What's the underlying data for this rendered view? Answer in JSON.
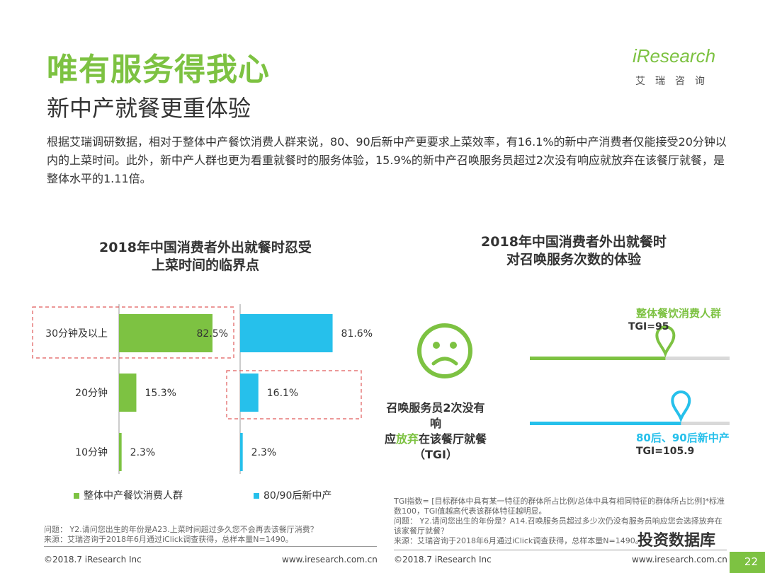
{
  "header": {
    "title": "唯有服务得我心",
    "subtitle": "新中产就餐更重体验",
    "logo_text": "iResearch",
    "logo_cn": "艾瑞咨询",
    "intro": "根据艾瑞调研数据，相对于整体中产餐饮消费人群来说，80、90后新中产更要求上菜效率，有16.1%的新中产消费者仅能接受20分钟以内的上菜时间。此外，新中产人群也更为看重就餐时的服务体验，15.9%的新中产召唤服务员超过2次没有响应就放弃在该餐厅就餐，是整体水平的1.11倍。"
  },
  "chart_data": [
    {
      "type": "bar",
      "orientation": "horizontal",
      "title": "2018年中国消费者外出就餐时忍受上菜时间的临界点",
      "title_lines": [
        "2018年中国消费者外出就餐时忍受",
        "上菜时间的临界点"
      ],
      "categories": [
        "30分钟及以上",
        "20分钟",
        "10分钟"
      ],
      "series": [
        {
          "name": "整体中产餐饮消费人群",
          "values": [
            82.5,
            15.3,
            2.3
          ],
          "labels": [
            "82.5%",
            "15.3%",
            "2.3%"
          ],
          "color": "#7dc242"
        },
        {
          "name": "80/90后新中产",
          "values": [
            81.6,
            16.1,
            2.3
          ],
          "labels": [
            "81.6%",
            "16.1%",
            "2.3%"
          ],
          "color": "#26c0eb"
        }
      ],
      "unit": "%",
      "xlim": [
        0,
        100
      ]
    },
    {
      "type": "bar",
      "title": "2018年中国消费者外出就餐时对召唤服务次数的体验",
      "title_lines": [
        "2018年中国消费者外出就餐时",
        "对召唤服务次数的体验"
      ],
      "metric": "召唤服务员2次没有响应就放弃在该餐厅就餐（TGI）",
      "series": [
        {
          "name": "整体餐饮消费人群",
          "tgi_label": "TGI=95",
          "value": 95,
          "color": "#7dc242"
        },
        {
          "name": "80后、90后新中产",
          "tgi_label": "TGI=105.9",
          "value": 105.9,
          "color": "#26c0eb"
        }
      ],
      "xlim": [
        0,
        140
      ]
    }
  ],
  "face": {
    "title_part1": "召唤服务员2次没有响",
    "title_part2a": "应",
    "title_highlight": "放弃",
    "title_part2b": "在该餐厅就餐",
    "title_part3": "（TGI）"
  },
  "notes": {
    "left_q": "问题： Y2.请问您出生的年份是A23.上菜时间超过多久您不会再去该餐厅消费？",
    "left_src": "来源：艾瑞咨询于2018年6月通过iClick调查获得，总样本量N=1490。",
    "right_tgi": "TGI指数= [目标群体中具有某一特征的群体所占比例/总体中具有相同特征的群体所占比例]*标准数100，TGI值越高代表该群体特征越明显。",
    "right_q": "问题： Y2.请问您出生的年份是？A14.召唤服务员超过多少次仍没有服务员响应您会选择放弃在该家餐厅就餐？",
    "right_src": "来源：艾瑞咨询于2018年6月通过iClick调查获得，总样本量N=1490。"
  },
  "footer": {
    "left_copy": "©2018.7 iResearch Inc",
    "left_url": "www.iresearch.com.cn",
    "right_copy": "©2018.7 iResearch Inc",
    "right_url": "www.iresearch.com.cn",
    "page": "22",
    "watermark": "投资数据库"
  },
  "colors": {
    "green": "#7dc242",
    "blue": "#26c0eb",
    "dashed_red": "#e05a5a"
  }
}
